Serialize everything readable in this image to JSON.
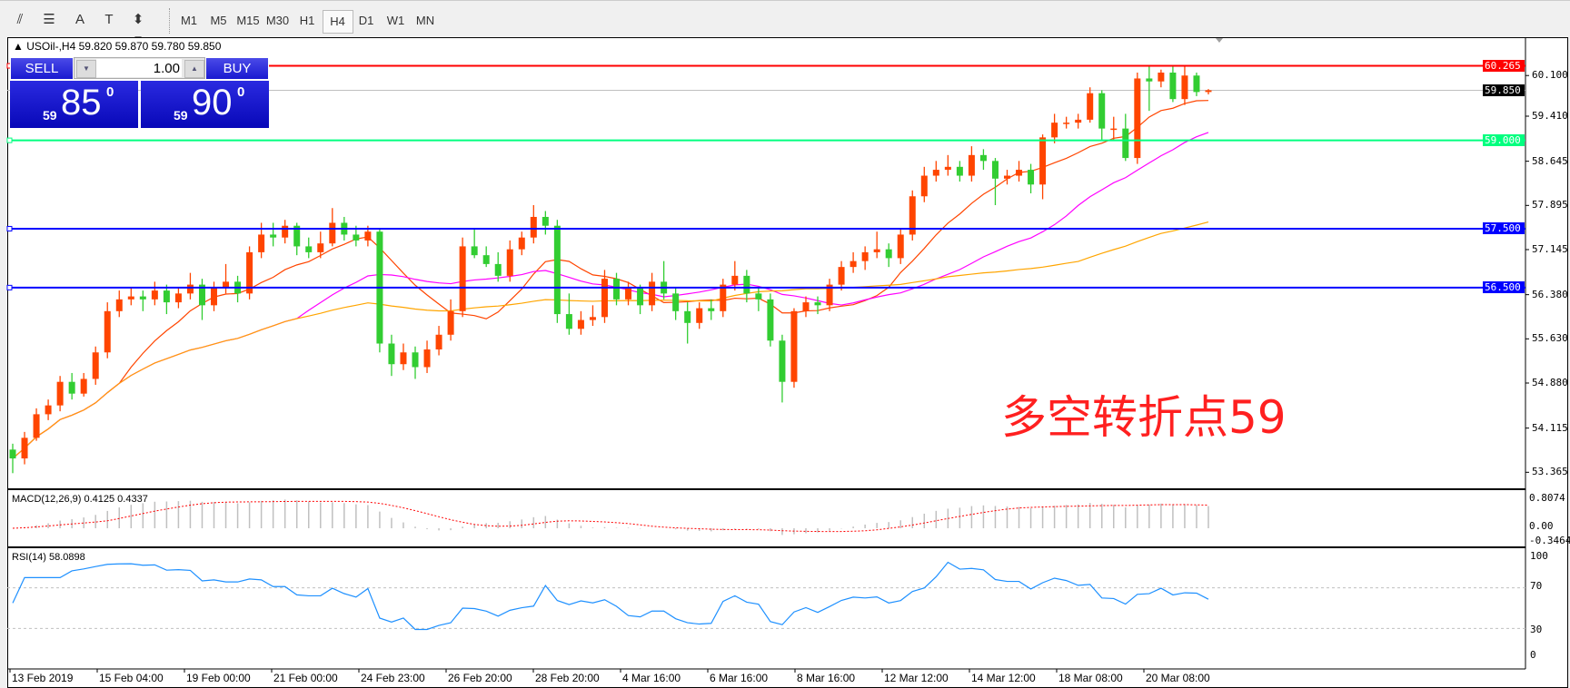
{
  "toolbar": {
    "icons": [
      "fibonacci-fan-icon",
      "fibonacci-lines-icon",
      "text-icon",
      "text-label-icon",
      "arrows-icon"
    ],
    "icon_glyphs": [
      "⫽",
      "☰",
      "A",
      "T",
      "⬍"
    ],
    "timeframes": [
      "M1",
      "M5",
      "M15",
      "M30",
      "H1",
      "H4",
      "D1",
      "W1",
      "MN"
    ],
    "selected_timeframe": "H4"
  },
  "chart": {
    "symbol_line": "USOil-,H4",
    "ohlc_text": "59.820 59.870 59.780 59.850",
    "annotation": "多空转折点59",
    "up_color": "#ff4500",
    "down_color": "#32cd32"
  },
  "trade_panel": {
    "sell_label": "SELL",
    "buy_label": "BUY",
    "lot": "1.00",
    "sell_price": {
      "prefix": "59",
      "big": "85",
      "sup": "0"
    },
    "buy_price": {
      "prefix": "59",
      "big": "90",
      "sup": "0"
    }
  },
  "chart_data": {
    "type": "candlestick",
    "candles": [
      [
        53.75,
        53.85,
        53.35,
        53.6
      ],
      [
        53.6,
        54.05,
        53.5,
        53.95
      ],
      [
        53.95,
        54.45,
        53.9,
        54.35
      ],
      [
        54.35,
        54.6,
        54.25,
        54.5
      ],
      [
        54.5,
        55.0,
        54.4,
        54.9
      ],
      [
        54.9,
        55.05,
        54.6,
        54.7
      ],
      [
        54.7,
        55.05,
        54.65,
        54.95
      ],
      [
        54.95,
        55.5,
        54.85,
        55.4
      ],
      [
        55.4,
        56.25,
        55.3,
        56.1
      ],
      [
        56.1,
        56.45,
        56.0,
        56.3
      ],
      [
        56.3,
        56.5,
        56.2,
        56.35
      ],
      [
        56.35,
        56.45,
        56.1,
        56.3
      ],
      [
        56.3,
        56.6,
        56.2,
        56.45
      ],
      [
        56.45,
        56.55,
        56.05,
        56.25
      ],
      [
        56.25,
        56.5,
        56.15,
        56.4
      ],
      [
        56.4,
        56.75,
        56.3,
        56.55
      ],
      [
        56.55,
        56.65,
        55.95,
        56.2
      ],
      [
        56.2,
        56.6,
        56.1,
        56.5
      ],
      [
        56.5,
        56.9,
        56.4,
        56.6
      ],
      [
        56.6,
        56.7,
        56.25,
        56.4
      ],
      [
        56.4,
        57.2,
        56.3,
        57.1
      ],
      [
        57.1,
        57.6,
        57.0,
        57.4
      ],
      [
        57.4,
        57.6,
        57.2,
        57.35
      ],
      [
        57.35,
        57.65,
        57.25,
        57.55
      ],
      [
        57.55,
        57.6,
        57.05,
        57.2
      ],
      [
        57.2,
        57.35,
        57.0,
        57.1
      ],
      [
        57.1,
        57.45,
        57.0,
        57.25
      ],
      [
        57.25,
        57.85,
        57.2,
        57.6
      ],
      [
        57.6,
        57.7,
        57.3,
        57.4
      ],
      [
        57.4,
        57.55,
        57.2,
        57.3
      ],
      [
        57.3,
        57.55,
        57.2,
        57.45
      ],
      [
        57.45,
        57.5,
        55.4,
        55.55
      ],
      [
        55.55,
        55.7,
        55.0,
        55.2
      ],
      [
        55.2,
        55.55,
        55.1,
        55.4
      ],
      [
        55.4,
        55.5,
        54.95,
        55.15
      ],
      [
        55.15,
        55.6,
        55.05,
        55.45
      ],
      [
        55.45,
        55.85,
        55.35,
        55.7
      ],
      [
        55.7,
        56.3,
        55.6,
        56.1
      ],
      [
        56.1,
        57.35,
        56.0,
        57.2
      ],
      [
        57.2,
        57.5,
        57.0,
        57.05
      ],
      [
        57.05,
        57.2,
        56.85,
        56.9
      ],
      [
        56.9,
        57.1,
        56.6,
        56.7
      ],
      [
        56.7,
        57.3,
        56.6,
        57.15
      ],
      [
        57.15,
        57.45,
        57.05,
        57.35
      ],
      [
        57.35,
        57.9,
        57.25,
        57.7
      ],
      [
        57.7,
        57.8,
        57.4,
        57.55
      ],
      [
        57.55,
        57.65,
        55.9,
        56.05
      ],
      [
        56.05,
        56.4,
        55.7,
        55.8
      ],
      [
        55.8,
        56.1,
        55.7,
        55.95
      ],
      [
        55.95,
        56.2,
        55.85,
        56.0
      ],
      [
        56.0,
        56.8,
        55.9,
        56.65
      ],
      [
        56.65,
        56.75,
        56.2,
        56.3
      ],
      [
        56.3,
        56.6,
        56.2,
        56.5
      ],
      [
        56.5,
        56.55,
        56.05,
        56.2
      ],
      [
        56.2,
        56.75,
        56.1,
        56.6
      ],
      [
        56.6,
        56.95,
        56.3,
        56.4
      ],
      [
        56.4,
        56.5,
        55.95,
        56.1
      ],
      [
        56.1,
        56.25,
        55.55,
        55.9
      ],
      [
        55.9,
        56.25,
        55.8,
        56.15
      ],
      [
        56.15,
        56.3,
        55.95,
        56.1
      ],
      [
        56.1,
        56.65,
        56.0,
        56.55
      ],
      [
        56.55,
        56.95,
        56.45,
        56.7
      ],
      [
        56.7,
        56.8,
        56.25,
        56.4
      ],
      [
        56.4,
        56.5,
        56.1,
        56.3
      ],
      [
        56.3,
        56.4,
        55.5,
        55.6
      ],
      [
        55.6,
        55.7,
        54.55,
        54.9
      ],
      [
        54.9,
        56.15,
        54.8,
        56.1
      ],
      [
        56.1,
        56.35,
        56.0,
        56.25
      ],
      [
        56.25,
        56.35,
        56.05,
        56.2
      ],
      [
        56.2,
        56.65,
        56.1,
        56.55
      ],
      [
        56.55,
        56.95,
        56.45,
        56.85
      ],
      [
        56.85,
        57.1,
        56.75,
        56.95
      ],
      [
        56.95,
        57.2,
        56.8,
        57.1
      ],
      [
        57.1,
        57.45,
        57.0,
        57.15
      ],
      [
        57.15,
        57.25,
        56.85,
        57.0
      ],
      [
        57.0,
        57.5,
        56.9,
        57.4
      ],
      [
        57.4,
        58.15,
        57.3,
        58.05
      ],
      [
        58.05,
        58.55,
        57.95,
        58.4
      ],
      [
        58.4,
        58.65,
        58.3,
        58.5
      ],
      [
        58.5,
        58.75,
        58.4,
        58.55
      ],
      [
        58.55,
        58.65,
        58.3,
        58.4
      ],
      [
        58.4,
        58.9,
        58.3,
        58.75
      ],
      [
        58.75,
        58.85,
        58.5,
        58.65
      ],
      [
        58.65,
        58.7,
        57.9,
        58.35
      ],
      [
        58.35,
        58.5,
        58.25,
        58.4
      ],
      [
        58.4,
        58.65,
        58.3,
        58.5
      ],
      [
        58.5,
        58.6,
        58.1,
        58.25
      ],
      [
        58.25,
        59.1,
        58.0,
        59.05
      ],
      [
        59.05,
        59.45,
        58.95,
        59.3
      ],
      [
        59.3,
        59.4,
        59.2,
        59.3
      ],
      [
        59.3,
        59.45,
        59.2,
        59.35
      ],
      [
        59.35,
        59.9,
        59.3,
        59.8
      ],
      [
        59.8,
        59.85,
        59.0,
        59.2
      ],
      [
        59.2,
        59.4,
        59.0,
        59.2
      ],
      [
        59.2,
        59.45,
        58.65,
        58.7
      ],
      [
        58.7,
        60.15,
        58.6,
        60.05
      ],
      [
        60.05,
        60.25,
        59.5,
        60.0
      ],
      [
        60.0,
        60.2,
        59.9,
        60.15
      ],
      [
        60.15,
        60.25,
        59.65,
        59.7
      ],
      [
        59.7,
        60.28,
        59.6,
        60.1
      ],
      [
        60.1,
        60.15,
        59.75,
        59.82
      ],
      [
        59.82,
        59.87,
        59.78,
        59.85
      ]
    ],
    "moving_average_colors": [
      "#ff4500",
      "#ff00ff",
      "#ffa500"
    ],
    "price_ticks": [
      "60.100",
      "59.410",
      "58.645",
      "57.895",
      "57.145",
      "56.380",
      "55.630",
      "54.880",
      "54.115",
      "53.365"
    ],
    "horizontal_lines": [
      {
        "price": "60.265",
        "color": "#ff0000"
      },
      {
        "price": "59.850",
        "color": "#000000",
        "style": "bid"
      },
      {
        "price": "59.000",
        "color": "#00ff7f"
      },
      {
        "price": "57.500",
        "color": "#0000ff"
      },
      {
        "price": "56.500",
        "color": "#0000ff"
      }
    ],
    "date_labels": [
      "13 Feb 2019",
      "15 Feb 04:00",
      "19 Feb 00:00",
      "21 Feb 00:00",
      "24 Feb 23:00",
      "26 Feb 20:00",
      "28 Feb 20:00",
      "4 Mar 16:00",
      "6 Mar 16:00",
      "8 Mar 16:00",
      "12 Mar 12:00",
      "14 Mar 12:00",
      "18 Mar 08:00",
      "20 Mar 08:00"
    ],
    "macd": {
      "label": "MACD(12,26,9) 0.4125 0.4337",
      "ticks": [
        "0.8074",
        "0.00",
        "-0.3464"
      ]
    },
    "rsi": {
      "label": "RSI(14) 58.0898",
      "ticks": [
        "100",
        "70",
        "30",
        "0"
      ],
      "levels": [
        70,
        30
      ]
    }
  }
}
